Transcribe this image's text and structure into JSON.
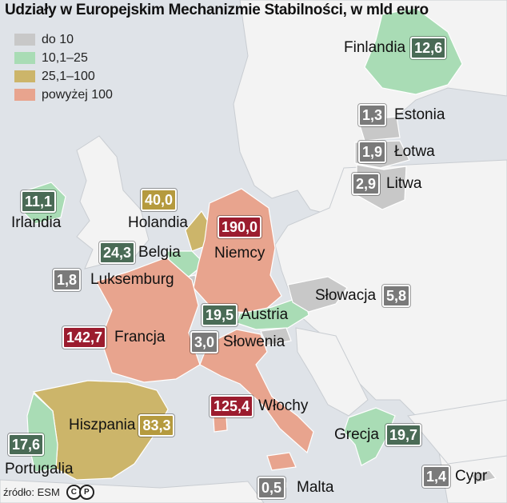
{
  "title": "Udziały w Europejskim Mechanizmie Stabilności, w mld euro",
  "legend": [
    {
      "label": "do 10",
      "color": "#c8c8c8"
    },
    {
      "label": "10,1–25",
      "color": "#a9dcb5"
    },
    {
      "label": "25,1–100",
      "color": "#ccb56a"
    },
    {
      "label": "powyżej 100",
      "color": "#e8a48e"
    }
  ],
  "colors": {
    "gray_box": "#7a7a7a",
    "green_box": "#4a6b56",
    "gold_box": "#b59a3e",
    "red_box": "#9b1c2e",
    "land": "#f3f3f3",
    "sea": "#dfe3e8"
  },
  "countries": [
    {
      "name": "Finlandia",
      "value": "12,6",
      "class": "green"
    },
    {
      "name": "Estonia",
      "value": "1,3",
      "class": "gray"
    },
    {
      "name": "Łotwa",
      "value": "1,9",
      "class": "gray"
    },
    {
      "name": "Litwa",
      "value": "2,9",
      "class": "gray"
    },
    {
      "name": "Irlandia",
      "value": "11,1",
      "class": "green"
    },
    {
      "name": "Holandia",
      "value": "40,0",
      "class": "gold"
    },
    {
      "name": "Niemcy",
      "value": "190,0",
      "class": "red"
    },
    {
      "name": "Belgia",
      "value": "24,3",
      "class": "green"
    },
    {
      "name": "Luksemburg",
      "value": "1,8",
      "class": "gray"
    },
    {
      "name": "Słowacja",
      "value": "5,8",
      "class": "gray"
    },
    {
      "name": "Austria",
      "value": "19,5",
      "class": "green"
    },
    {
      "name": "Francja",
      "value": "142,7",
      "class": "red"
    },
    {
      "name": "Słowenia",
      "value": "3,0",
      "class": "gray"
    },
    {
      "name": "Włochy",
      "value": "125,4",
      "class": "red"
    },
    {
      "name": "Hiszpania",
      "value": "83,3",
      "class": "gold"
    },
    {
      "name": "Grecja",
      "value": "19,7",
      "class": "green"
    },
    {
      "name": "Portugalia",
      "value": "17,6",
      "class": "green"
    },
    {
      "name": "Malta",
      "value": "0,5",
      "class": "gray"
    },
    {
      "name": "Cypr",
      "value": "1,4",
      "class": "gray"
    }
  ],
  "source": "źródło: ESM",
  "copyright_letters": [
    "C",
    "P"
  ]
}
